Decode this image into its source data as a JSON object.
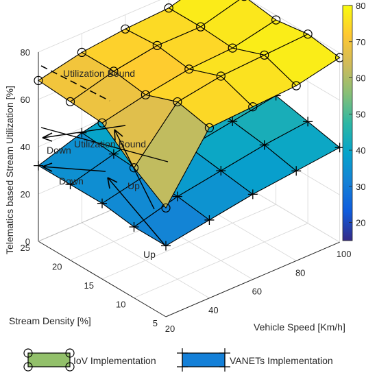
{
  "chart_data": {
    "type": "surface3d",
    "zlabel": "Telematics based Stream Utilization [%]",
    "xlabel": "Vehicle Speed [Km/h]",
    "ylabel": "Stream Density [%]",
    "xticks": [
      "20",
      "40",
      "60",
      "80",
      "100"
    ],
    "yticks": [
      "5",
      "10",
      "15",
      "20",
      "25"
    ],
    "zticks": [
      "0",
      "20",
      "40",
      "60",
      "80"
    ],
    "colorbar": {
      "ticks": [
        "20",
        "30",
        "40",
        "50",
        "60",
        "70",
        "80"
      ],
      "range": [
        15,
        80
      ],
      "colors": [
        "#352a87",
        "#0f5cdd",
        "#1481d6",
        "#06a4ca",
        "#2eb7a4",
        "#87bf77",
        "#d1bb59",
        "#fec832",
        "#f9fb0e"
      ]
    },
    "series": [
      {
        "name": "IoV Implementation",
        "marker": "circle",
        "edge_color": "#000000",
        "legend_fill": "#92c06a",
        "points": [
          [
            20,
            5,
            46
          ],
          [
            20,
            10,
            55
          ],
          [
            20,
            15,
            66
          ],
          [
            20,
            20,
            67
          ],
          [
            20,
            25,
            68
          ],
          [
            40,
            5,
            72
          ],
          [
            40,
            10,
            75
          ],
          [
            40,
            15,
            70
          ],
          [
            40,
            20,
            72
          ],
          [
            40,
            25,
            72
          ],
          [
            60,
            5,
            73
          ],
          [
            60,
            10,
            78
          ],
          [
            60,
            15,
            73
          ],
          [
            60,
            20,
            75
          ],
          [
            60,
            25,
            74
          ],
          [
            80,
            5,
            74
          ],
          [
            80,
            10,
            79
          ],
          [
            80,
            15,
            74
          ],
          [
            80,
            20,
            75
          ],
          [
            80,
            25,
            75
          ],
          [
            100,
            5,
            78
          ],
          [
            100,
            10,
            80
          ],
          [
            100,
            15,
            78
          ],
          [
            100,
            20,
            80
          ],
          [
            100,
            25,
            80
          ]
        ]
      },
      {
        "name": "VANETs Implementation",
        "marker": "plus",
        "edge_color": "#000000",
        "legend_fill": "#1480d8",
        "points": [
          [
            20,
            5,
            30
          ],
          [
            20,
            10,
            30
          ],
          [
            20,
            15,
            32
          ],
          [
            20,
            20,
            32
          ],
          [
            20,
            25,
            32
          ],
          [
            40,
            5,
            33
          ],
          [
            40,
            10,
            35
          ],
          [
            40,
            15,
            36
          ],
          [
            40,
            20,
            37
          ],
          [
            40,
            25,
            38
          ],
          [
            60,
            5,
            36
          ],
          [
            60,
            10,
            38
          ],
          [
            60,
            15,
            40
          ],
          [
            60,
            20,
            41
          ],
          [
            60,
            25,
            42
          ],
          [
            80,
            5,
            38
          ],
          [
            80,
            10,
            41
          ],
          [
            80,
            15,
            43
          ],
          [
            80,
            20,
            45
          ],
          [
            80,
            25,
            46
          ],
          [
            100,
            5,
            40
          ],
          [
            100,
            10,
            43
          ],
          [
            100,
            15,
            46
          ],
          [
            100,
            20,
            48
          ],
          [
            100,
            25,
            49
          ]
        ]
      }
    ],
    "annotations": [
      {
        "text": "Utilization Bound",
        "kind": "dashed-line"
      },
      {
        "text": "Utilization Bound",
        "kind": "solid-line"
      },
      {
        "text": "Down",
        "kind": "arrow"
      },
      {
        "text": "Down",
        "kind": "arrow"
      },
      {
        "text": "Up",
        "kind": "arrow"
      },
      {
        "text": "Up",
        "kind": "arrow"
      }
    ],
    "grid": true,
    "legend_position": "bottom"
  }
}
